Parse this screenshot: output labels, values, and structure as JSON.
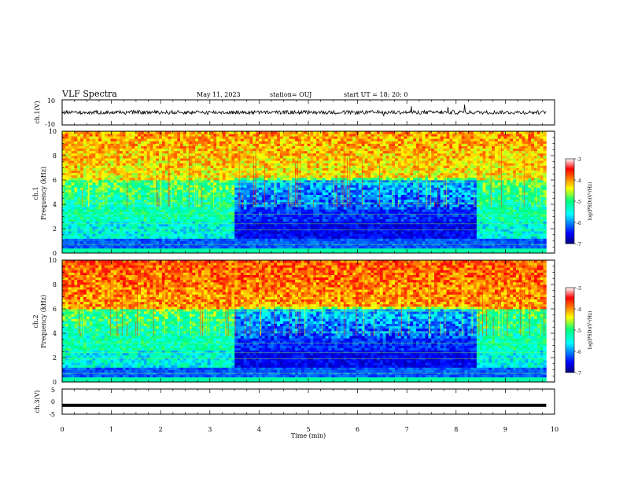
{
  "header": {
    "title": "VLF Spectra",
    "date": "May 11, 2023",
    "station": "station= OUJ",
    "start": "start  UT =   18: 20: 0"
  },
  "chart_data": [
    {
      "type": "line",
      "panel": "ch1-waveform",
      "ylabel": "ch.1(V)",
      "ylim": [
        -10,
        10
      ],
      "yticks": [
        "10",
        "-10"
      ],
      "baseline": 0,
      "x_end": 9.83,
      "color": "#000000"
    },
    {
      "type": "heatmap",
      "panel": "ch1-spectrogram",
      "ylabel": "ch.1\nFrequency (kHz)",
      "ylim": [
        0,
        10
      ],
      "yticks": [
        "0",
        "2",
        "4",
        "6",
        "8",
        "10"
      ],
      "xlim": [
        0,
        10
      ],
      "x_end": 9.83,
      "quiet_interval_min": [
        3.5,
        8.4
      ],
      "colorbar": {
        "label": "log(PSD)(V²/Hz)",
        "ticks": [
          "-3",
          "-4",
          "-5",
          "-6",
          "-7"
        ],
        "range": [
          -7,
          -3
        ]
      }
    },
    {
      "type": "heatmap",
      "panel": "ch2-spectrogram",
      "ylabel": "ch.2\nFrequency (kHz)",
      "ylim": [
        0,
        10
      ],
      "yticks": [
        "0",
        "2",
        "4",
        "6",
        "8",
        "10"
      ],
      "xlim": [
        0,
        10
      ],
      "x_end": 9.83,
      "quiet_interval_min": [
        3.5,
        8.4
      ],
      "colorbar": {
        "label": "log(PSD)(V²/Hz)",
        "ticks": [
          "-3",
          "-4",
          "-5",
          "-6",
          "-7"
        ],
        "range": [
          -7,
          -3
        ]
      }
    },
    {
      "type": "line",
      "panel": "ch3-waveform",
      "ylabel": "ch.3(V)",
      "ylim": [
        -5,
        5
      ],
      "yticks": [
        "5",
        "0",
        "-5"
      ],
      "baseline": -1.5,
      "x_end": 9.83,
      "color": "#000000"
    }
  ],
  "xaxis": {
    "xlabel": "Time (min)",
    "xlim": [
      0,
      10
    ],
    "ticks": [
      "0",
      "1",
      "2",
      "3",
      "4",
      "5",
      "6",
      "7",
      "8",
      "9",
      "10"
    ]
  },
  "colors": {
    "low": "#00007f",
    "mid": "#00ff80",
    "high": "#ff0000"
  }
}
